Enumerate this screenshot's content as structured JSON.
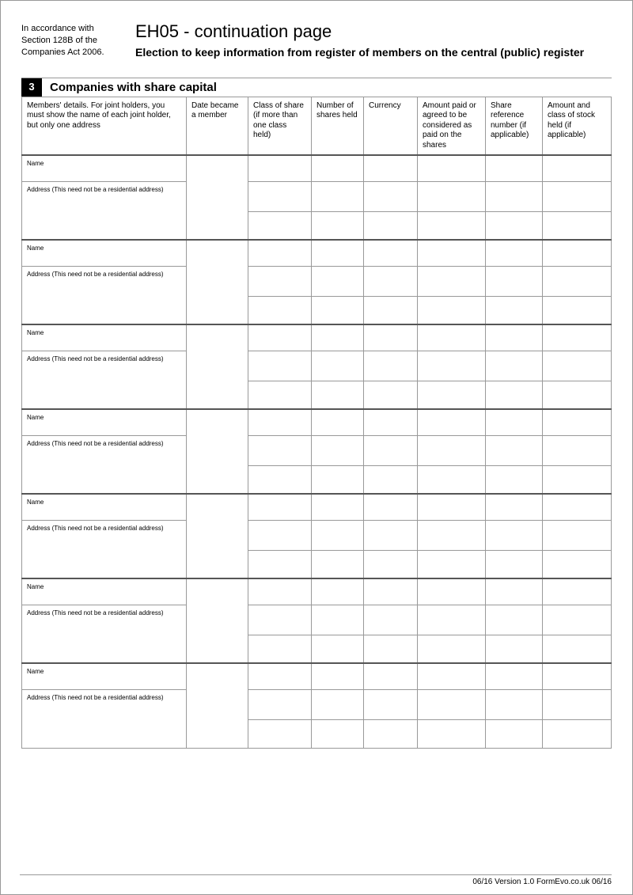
{
  "header": {
    "accordance": "In accordance with Section 128B of the Companies Act 2006.",
    "title": "EH05 - continuation page",
    "subtitle": "Election to keep information from register of members on the central (public) register"
  },
  "section": {
    "number": "3",
    "title": "Companies with share capital"
  },
  "columns": [
    "Members' details.\nFor joint holders, you must show the name of each joint holder, but  only one address",
    "Date became a member",
    "Class of share (if more than one class held)",
    "Number of shares held",
    "Currency",
    "Amount paid or agreed to be considered as paid on the shares",
    "Share reference number (if applicable)",
    "Amount and class of stock held (if applicable)"
  ],
  "labels": {
    "name": "Name",
    "address": "Address (This need not be a residential address)"
  },
  "entry_count": 7,
  "footer": "06/16 Version 1.0 FormEvo.co.uk 06/16"
}
